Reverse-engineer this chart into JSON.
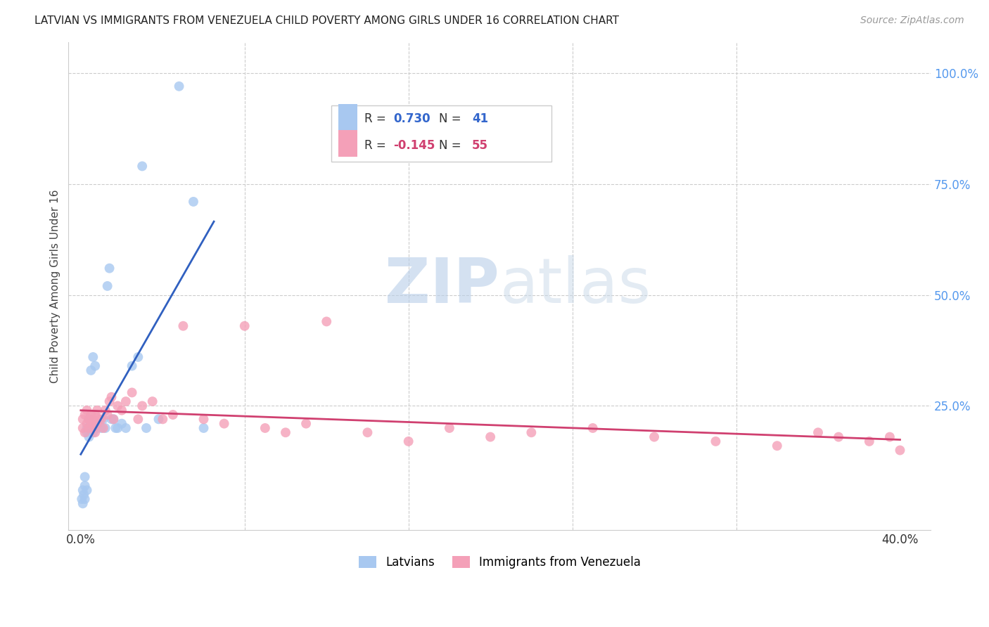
{
  "title": "LATVIAN VS IMMIGRANTS FROM VENEZUELA CHILD POVERTY AMONG GIRLS UNDER 16 CORRELATION CHART",
  "source": "Source: ZipAtlas.com",
  "ylabel": "Child Poverty Among Girls Under 16",
  "latvian_R": 0.73,
  "latvian_N": 41,
  "venezuela_R": -0.145,
  "venezuela_N": 55,
  "latvian_color": "#A8C8F0",
  "venezuela_color": "#F4A0B8",
  "latvian_line_color": "#3060C0",
  "venezuela_line_color": "#D04070",
  "watermark_color": "#D0E0F5",
  "background_color": "#FFFFFF",
  "grid_color": "#CCCCCC",
  "xlim": [
    0.0,
    0.4
  ],
  "ylim": [
    0.0,
    1.05
  ],
  "latvians_x": [
    0.0005,
    0.001,
    0.001,
    0.0015,
    0.002,
    0.002,
    0.002,
    0.003,
    0.003,
    0.003,
    0.004,
    0.004,
    0.004,
    0.005,
    0.005,
    0.005,
    0.006,
    0.006,
    0.007,
    0.007,
    0.008,
    0.009,
    0.01,
    0.011,
    0.012,
    0.013,
    0.014,
    0.015,
    0.016,
    0.017,
    0.018,
    0.02,
    0.022,
    0.025,
    0.028,
    0.03,
    0.032,
    0.038,
    0.048,
    0.055,
    0.06
  ],
  "latvians_y": [
    0.04,
    0.06,
    0.03,
    0.05,
    0.07,
    0.04,
    0.09,
    0.06,
    0.2,
    0.19,
    0.18,
    0.2,
    0.22,
    0.19,
    0.21,
    0.33,
    0.36,
    0.19,
    0.34,
    0.2,
    0.2,
    0.21,
    0.2,
    0.22,
    0.2,
    0.52,
    0.56,
    0.22,
    0.22,
    0.2,
    0.2,
    0.21,
    0.2,
    0.34,
    0.36,
    0.79,
    0.2,
    0.22,
    0.97,
    0.71,
    0.2
  ],
  "venezuela_x": [
    0.001,
    0.001,
    0.002,
    0.002,
    0.003,
    0.003,
    0.004,
    0.004,
    0.005,
    0.005,
    0.006,
    0.006,
    0.007,
    0.007,
    0.008,
    0.008,
    0.009,
    0.01,
    0.011,
    0.012,
    0.013,
    0.014,
    0.015,
    0.016,
    0.018,
    0.02,
    0.022,
    0.025,
    0.028,
    0.03,
    0.035,
    0.04,
    0.045,
    0.05,
    0.06,
    0.07,
    0.08,
    0.09,
    0.1,
    0.11,
    0.12,
    0.14,
    0.16,
    0.18,
    0.2,
    0.22,
    0.25,
    0.28,
    0.31,
    0.34,
    0.36,
    0.37,
    0.385,
    0.395,
    0.4
  ],
  "venezuela_y": [
    0.2,
    0.22,
    0.19,
    0.23,
    0.21,
    0.24,
    0.2,
    0.22,
    0.21,
    0.23,
    0.2,
    0.22,
    0.19,
    0.23,
    0.21,
    0.24,
    0.22,
    0.22,
    0.2,
    0.24,
    0.23,
    0.26,
    0.27,
    0.22,
    0.25,
    0.24,
    0.26,
    0.28,
    0.22,
    0.25,
    0.26,
    0.22,
    0.23,
    0.43,
    0.22,
    0.21,
    0.43,
    0.2,
    0.19,
    0.21,
    0.44,
    0.19,
    0.17,
    0.2,
    0.18,
    0.19,
    0.2,
    0.18,
    0.17,
    0.16,
    0.19,
    0.18,
    0.17,
    0.18,
    0.15
  ]
}
